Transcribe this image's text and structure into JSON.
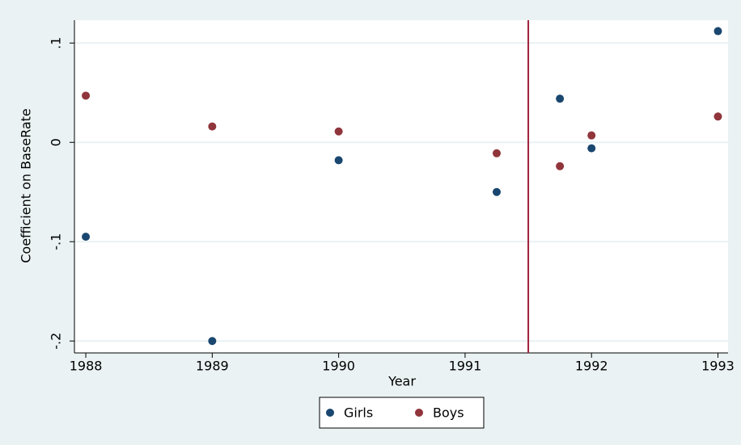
{
  "chart_data": {
    "type": "scatter",
    "x_label": "Year",
    "y_label": "Coefficient on BaseRate",
    "series": [
      {
        "name": "Girls",
        "color": "#1a476f",
        "x": [
          1988,
          1989,
          1990,
          1991.25,
          1991.75,
          1992,
          1993
        ],
        "values": [
          -0.095,
          -0.2,
          -0.018,
          -0.05,
          0.044,
          -0.006,
          0.112
        ]
      },
      {
        "name": "Boys",
        "color": "#90353b",
        "x": [
          1988,
          1989,
          1990,
          1991.25,
          1991.75,
          1992,
          1993
        ],
        "values": [
          0.047,
          0.016,
          0.011,
          -0.011,
          -0.024,
          0.007,
          0.026
        ]
      }
    ],
    "xlim": [
      1987.91,
      1993.08
    ],
    "xticks": [
      1988,
      1989,
      1990,
      1991,
      1992,
      1993
    ],
    "ylim": [
      -0.212,
      0.123
    ],
    "yticks": [
      {
        "value": -0.2,
        "label": "-.2"
      },
      {
        "value": -0.1,
        "label": "-.1"
      },
      0,
      {
        "value": 0.1,
        "label": ".1"
      }
    ],
    "grid": true,
    "xline": 1991.5,
    "xline_color": "#a0203c",
    "legend": "bottom"
  }
}
